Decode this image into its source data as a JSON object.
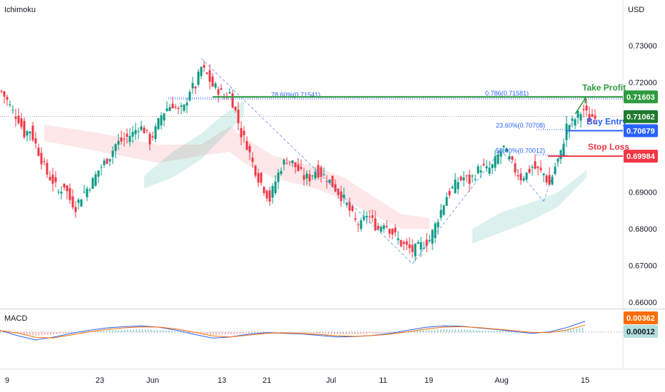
{
  "header": {
    "indicator_label": "Ichimoku",
    "currency": "USD"
  },
  "macd_panel": {
    "label": "MACD"
  },
  "chart_data": {
    "type": "candlestick",
    "price_axis": {
      "ticks": [
        "0.73000",
        "0.72000",
        "0.71000",
        "0.69000",
        "0.68000",
        "0.67000",
        "0.66000"
      ],
      "ylim": [
        0.657,
        0.735
      ]
    },
    "time_axis": {
      "ticks": [
        "9",
        "23",
        "Jun",
        "13",
        "21",
        "Jul",
        "11",
        "19",
        "Aug",
        "15"
      ]
    },
    "last_price": "0.71062",
    "levels": [
      {
        "name": "Take Profit",
        "value": 0.71603,
        "tag": "0.71603",
        "color": "#2e9b3e"
      },
      {
        "name": "Buy Entry",
        "value": 0.70679,
        "tag": "0.70679",
        "color": "#2962ff"
      },
      {
        "name": "Stop Loss",
        "value": 0.69984,
        "tag": "0.69984",
        "color": "#f23645"
      }
    ],
    "fib_labels": [
      {
        "text": "0.786(0.71581)",
        "value": 0.71581
      },
      {
        "text": "78.60%(0.71541)",
        "value": 0.71541
      },
      {
        "text": "23.60%(0.70708)",
        "value": 0.70708
      },
      {
        "text": "50.00%(0.70012)",
        "value": 0.70012
      }
    ],
    "price_path": [
      [
        0,
        0.7175
      ],
      [
        4,
        0.715
      ],
      [
        8,
        0.712
      ],
      [
        12,
        0.71
      ],
      [
        16,
        0.706
      ],
      [
        20,
        0.707
      ],
      [
        24,
        0.703
      ],
      [
        28,
        0.699
      ],
      [
        32,
        0.695
      ],
      [
        36,
        0.693
      ],
      [
        40,
        0.69
      ],
      [
        44,
        0.692
      ],
      [
        48,
        0.688
      ],
      [
        52,
        0.686
      ],
      [
        56,
        0.689
      ],
      [
        60,
        0.691
      ],
      [
        64,
        0.693
      ],
      [
        68,
        0.696
      ],
      [
        72,
        0.698
      ],
      [
        76,
        0.7
      ],
      [
        80,
        0.703
      ],
      [
        84,
        0.704
      ],
      [
        88,
        0.705
      ],
      [
        92,
        0.706
      ],
      [
        96,
        0.708
      ],
      [
        100,
        0.707
      ],
      [
        104,
        0.704
      ],
      [
        108,
        0.707
      ],
      [
        112,
        0.711
      ],
      [
        116,
        0.713
      ],
      [
        120,
        0.714
      ],
      [
        124,
        0.712
      ],
      [
        128,
        0.713
      ],
      [
        132,
        0.718
      ],
      [
        136,
        0.719
      ],
      [
        140,
        0.724
      ],
      [
        144,
        0.722
      ],
      [
        148,
        0.719
      ],
      [
        152,
        0.718
      ],
      [
        156,
        0.716
      ],
      [
        160,
        0.717
      ],
      [
        164,
        0.712
      ],
      [
        168,
        0.706
      ],
      [
        172,
        0.703
      ],
      [
        176,
        0.698
      ],
      [
        180,
        0.694
      ],
      [
        184,
        0.691
      ],
      [
        188,
        0.688
      ],
      [
        192,
        0.693
      ],
      [
        196,
        0.697
      ],
      [
        200,
        0.699
      ],
      [
        204,
        0.698
      ],
      [
        208,
        0.696
      ],
      [
        212,
        0.694
      ],
      [
        216,
        0.694
      ],
      [
        220,
        0.696
      ],
      [
        224,
        0.695
      ],
      [
        228,
        0.694
      ],
      [
        232,
        0.692
      ],
      [
        236,
        0.69
      ],
      [
        240,
        0.688
      ],
      [
        244,
        0.685
      ],
      [
        248,
        0.682
      ],
      [
        252,
        0.681
      ],
      [
        256,
        0.684
      ],
      [
        260,
        0.682
      ],
      [
        264,
        0.68
      ],
      [
        268,
        0.682
      ],
      [
        272,
        0.68
      ],
      [
        276,
        0.678
      ],
      [
        280,
        0.676
      ],
      [
        284,
        0.675
      ],
      [
        288,
        0.674
      ],
      [
        292,
        0.675
      ],
      [
        296,
        0.676
      ],
      [
        300,
        0.677
      ],
      [
        304,
        0.681
      ],
      [
        308,
        0.685
      ],
      [
        312,
        0.689
      ],
      [
        316,
        0.691
      ],
      [
        320,
        0.693
      ],
      [
        324,
        0.694
      ],
      [
        328,
        0.693
      ],
      [
        332,
        0.695
      ],
      [
        336,
        0.697
      ],
      [
        340,
        0.696
      ],
      [
        344,
        0.697
      ],
      [
        348,
        0.7
      ],
      [
        352,
        0.702
      ],
      [
        356,
        0.699
      ],
      [
        360,
        0.696
      ],
      [
        364,
        0.694
      ],
      [
        368,
        0.695
      ],
      [
        372,
        0.697
      ],
      [
        376,
        0.696
      ],
      [
        380,
        0.695
      ],
      [
        384,
        0.692
      ],
      [
        388,
        0.697
      ],
      [
        392,
        0.7005
      ],
      [
        396,
        0.708
      ],
      [
        400,
        0.709
      ],
      [
        404,
        0.711
      ],
      [
        408,
        0.7125
      ],
      [
        412,
        0.71
      ],
      [
        416,
        0.7115
      ]
    ],
    "cloud_segments": [
      {
        "kind": "bearish",
        "pts": [
          [
            30,
            0.7085
          ],
          [
            70,
            0.706
          ],
          [
            110,
            0.703
          ],
          [
            140,
            0.703
          ],
          [
            160,
            0.708
          ],
          [
            170,
            0.705
          ],
          [
            190,
            0.7
          ],
          [
            220,
            0.697
          ],
          [
            240,
            0.694
          ],
          [
            260,
            0.689
          ],
          [
            280,
            0.684
          ],
          [
            300,
            0.683
          ],
          [
            300,
            0.68
          ],
          [
            280,
            0.68
          ],
          [
            260,
            0.684
          ],
          [
            240,
            0.688
          ],
          [
            220,
            0.691
          ],
          [
            190,
            0.694
          ],
          [
            170,
            0.698
          ],
          [
            160,
            0.701
          ],
          [
            140,
            0.7
          ],
          [
            110,
            0.698
          ],
          [
            70,
            0.701
          ],
          [
            30,
            0.704
          ]
        ]
      },
      {
        "kind": "bullish",
        "pts": [
          [
            330,
            0.68
          ],
          [
            350,
            0.6845
          ],
          [
            370,
            0.687
          ],
          [
            390,
            0.69
          ],
          [
            410,
            0.696
          ],
          [
            410,
            0.694
          ],
          [
            390,
            0.686
          ],
          [
            370,
            0.682
          ],
          [
            350,
            0.679
          ],
          [
            330,
            0.676
          ]
        ]
      },
      {
        "kind": "bullish",
        "pts": [
          [
            100,
            0.6945
          ],
          [
            120,
            0.701
          ],
          [
            140,
            0.706
          ],
          [
            155,
            0.711
          ],
          [
            170,
            0.715
          ],
          [
            170,
            0.711
          ],
          [
            155,
            0.705
          ],
          [
            140,
            0.699
          ],
          [
            120,
            0.694
          ],
          [
            100,
            0.691
          ]
        ]
      }
    ],
    "macd": {
      "ticks": [
        "0.00362",
        "0.00012"
      ],
      "macd_line": [
        0.0006,
        -0.0012,
        -0.0026,
        -0.0017,
        -0.0004,
        0.0006,
        0.0014,
        0.0018,
        0.0021,
        0.0016,
        0.0006,
        -0.0008,
        -0.002,
        -0.0016,
        -0.0007,
        -0.0002,
        -0.0004,
        -0.0006,
        -0.0011,
        -0.0016,
        -0.0015,
        -0.0011,
        -0.0004,
        0.0006,
        0.0016,
        0.0021,
        0.002,
        0.0014,
        0.0009,
        0.0002,
        -0.0004,
        0.0001,
        0.0016,
        0.0036
      ]
    }
  }
}
